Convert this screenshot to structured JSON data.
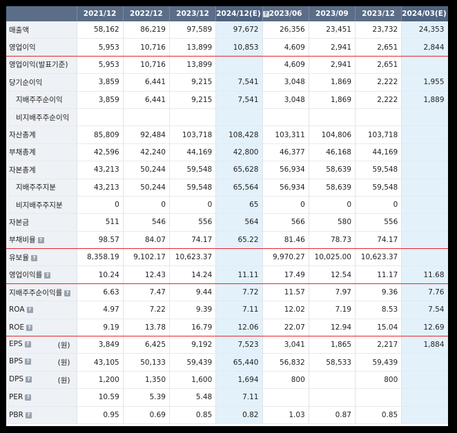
{
  "columns": [
    {
      "label": "2021/12",
      "help": false,
      "est": false
    },
    {
      "label": "2022/12",
      "help": false,
      "est": false
    },
    {
      "label": "2023/12",
      "help": false,
      "est": false
    },
    {
      "label": "2024/12(E)",
      "help": true,
      "est": true
    },
    {
      "label": "2023/06",
      "help": false,
      "est": false
    },
    {
      "label": "2023/09",
      "help": false,
      "est": false
    },
    {
      "label": "2023/12",
      "help": false,
      "est": false
    },
    {
      "label": "2024/03(E)",
      "help": true,
      "est": true
    }
  ],
  "rows": [
    {
      "label": "매출액",
      "sub": false,
      "help": false,
      "unit": "",
      "red": false,
      "values": [
        "58,162",
        "86,219",
        "97,589",
        "97,672",
        "26,356",
        "23,451",
        "23,732",
        "24,353"
      ]
    },
    {
      "label": "영업이익",
      "sub": false,
      "help": false,
      "unit": "",
      "red": true,
      "values": [
        "5,953",
        "10,716",
        "13,899",
        "10,853",
        "4,609",
        "2,941",
        "2,651",
        "2,844"
      ]
    },
    {
      "label": "영업이익(발표기준)",
      "sub": false,
      "help": false,
      "unit": "",
      "red": false,
      "values": [
        "5,953",
        "10,716",
        "13,899",
        "",
        "4,609",
        "2,941",
        "2,651",
        ""
      ]
    },
    {
      "label": "당기순이익",
      "sub": false,
      "help": false,
      "unit": "",
      "red": false,
      "values": [
        "3,859",
        "6,441",
        "9,215",
        "7,541",
        "3,048",
        "1,869",
        "2,222",
        "1,955"
      ]
    },
    {
      "label": "지배주주순이익",
      "sub": true,
      "help": false,
      "unit": "",
      "red": false,
      "values": [
        "3,859",
        "6,441",
        "9,215",
        "7,541",
        "3,048",
        "1,869",
        "2,222",
        "1,889"
      ]
    },
    {
      "label": "비지배주주순이익",
      "sub": true,
      "help": false,
      "unit": "",
      "red": false,
      "values": [
        "",
        "",
        "",
        "",
        "",
        "",
        "",
        ""
      ]
    },
    {
      "label": "자산총계",
      "sub": false,
      "help": false,
      "unit": "",
      "red": false,
      "values": [
        "85,809",
        "92,484",
        "103,718",
        "108,428",
        "103,311",
        "104,806",
        "103,718",
        ""
      ]
    },
    {
      "label": "부채총계",
      "sub": false,
      "help": false,
      "unit": "",
      "red": false,
      "values": [
        "42,596",
        "42,240",
        "44,169",
        "42,800",
        "46,377",
        "46,168",
        "44,169",
        ""
      ]
    },
    {
      "label": "자본총계",
      "sub": false,
      "help": false,
      "unit": "",
      "red": false,
      "values": [
        "43,213",
        "50,244",
        "59,548",
        "65,628",
        "56,934",
        "58,639",
        "59,548",
        ""
      ]
    },
    {
      "label": "지배주주지분",
      "sub": true,
      "help": false,
      "unit": "",
      "red": false,
      "values": [
        "43,213",
        "50,244",
        "59,548",
        "65,564",
        "56,934",
        "58,639",
        "59,548",
        ""
      ]
    },
    {
      "label": "비지배주주지분",
      "sub": true,
      "help": false,
      "unit": "",
      "red": false,
      "values": [
        "0",
        "0",
        "0",
        "65",
        "0",
        "0",
        "0",
        ""
      ]
    },
    {
      "label": "자본금",
      "sub": false,
      "help": false,
      "unit": "",
      "red": false,
      "values": [
        "511",
        "546",
        "556",
        "564",
        "566",
        "580",
        "556",
        ""
      ]
    },
    {
      "label": "부채비율",
      "sub": false,
      "help": true,
      "unit": "",
      "red": true,
      "values": [
        "98.57",
        "84.07",
        "74.17",
        "65.22",
        "81.46",
        "78.73",
        "74.17",
        ""
      ]
    },
    {
      "label": "유보율",
      "sub": false,
      "help": true,
      "unit": "",
      "red": false,
      "values": [
        "8,358.19",
        "9,102.17",
        "10,623.37",
        "",
        "9,970.27",
        "10,025.00",
        "10,623.37",
        ""
      ]
    },
    {
      "label": "영업이익률",
      "sub": false,
      "help": true,
      "unit": "",
      "red": true,
      "values": [
        "10.24",
        "12.43",
        "14.24",
        "11.11",
        "17.49",
        "12.54",
        "11.17",
        "11.68"
      ]
    },
    {
      "label": "지배주주순이익률",
      "sub": false,
      "help": true,
      "unit": "",
      "red": false,
      "values": [
        "6.63",
        "7.47",
        "9.44",
        "7.72",
        "11.57",
        "7.97",
        "9.36",
        "7.76"
      ]
    },
    {
      "label": "ROA",
      "sub": false,
      "help": true,
      "unit": "",
      "red": false,
      "values": [
        "4.97",
        "7.22",
        "9.39",
        "7.11",
        "12.02",
        "7.19",
        "8.53",
        "7.54"
      ]
    },
    {
      "label": "ROE",
      "sub": false,
      "help": true,
      "unit": "",
      "red": true,
      "values": [
        "9.19",
        "13.78",
        "16.79",
        "12.06",
        "22.07",
        "12.94",
        "15.04",
        "12.69"
      ]
    },
    {
      "label": "EPS",
      "sub": false,
      "help": true,
      "unit": "(원)",
      "red": false,
      "values": [
        "3,849",
        "6,425",
        "9,192",
        "7,523",
        "3,041",
        "1,865",
        "2,217",
        "1,884"
      ]
    },
    {
      "label": "BPS",
      "sub": false,
      "help": true,
      "unit": "(원)",
      "red": false,
      "values": [
        "43,105",
        "50,133",
        "59,439",
        "65,440",
        "56,832",
        "58,533",
        "59,439",
        ""
      ]
    },
    {
      "label": "DPS",
      "sub": false,
      "help": true,
      "unit": "(원)",
      "red": false,
      "values": [
        "1,200",
        "1,350",
        "1,600",
        "1,694",
        "800",
        "",
        "800",
        ""
      ]
    },
    {
      "label": "PER",
      "sub": false,
      "help": true,
      "unit": "",
      "red": false,
      "values": [
        "10.59",
        "5.39",
        "5.48",
        "7.11",
        "",
        "",
        "",
        ""
      ]
    },
    {
      "label": "PBR",
      "sub": false,
      "help": true,
      "unit": "",
      "red": false,
      "values": [
        "0.95",
        "0.69",
        "0.85",
        "0.82",
        "1.03",
        "0.87",
        "0.85",
        ""
      ]
    }
  ]
}
